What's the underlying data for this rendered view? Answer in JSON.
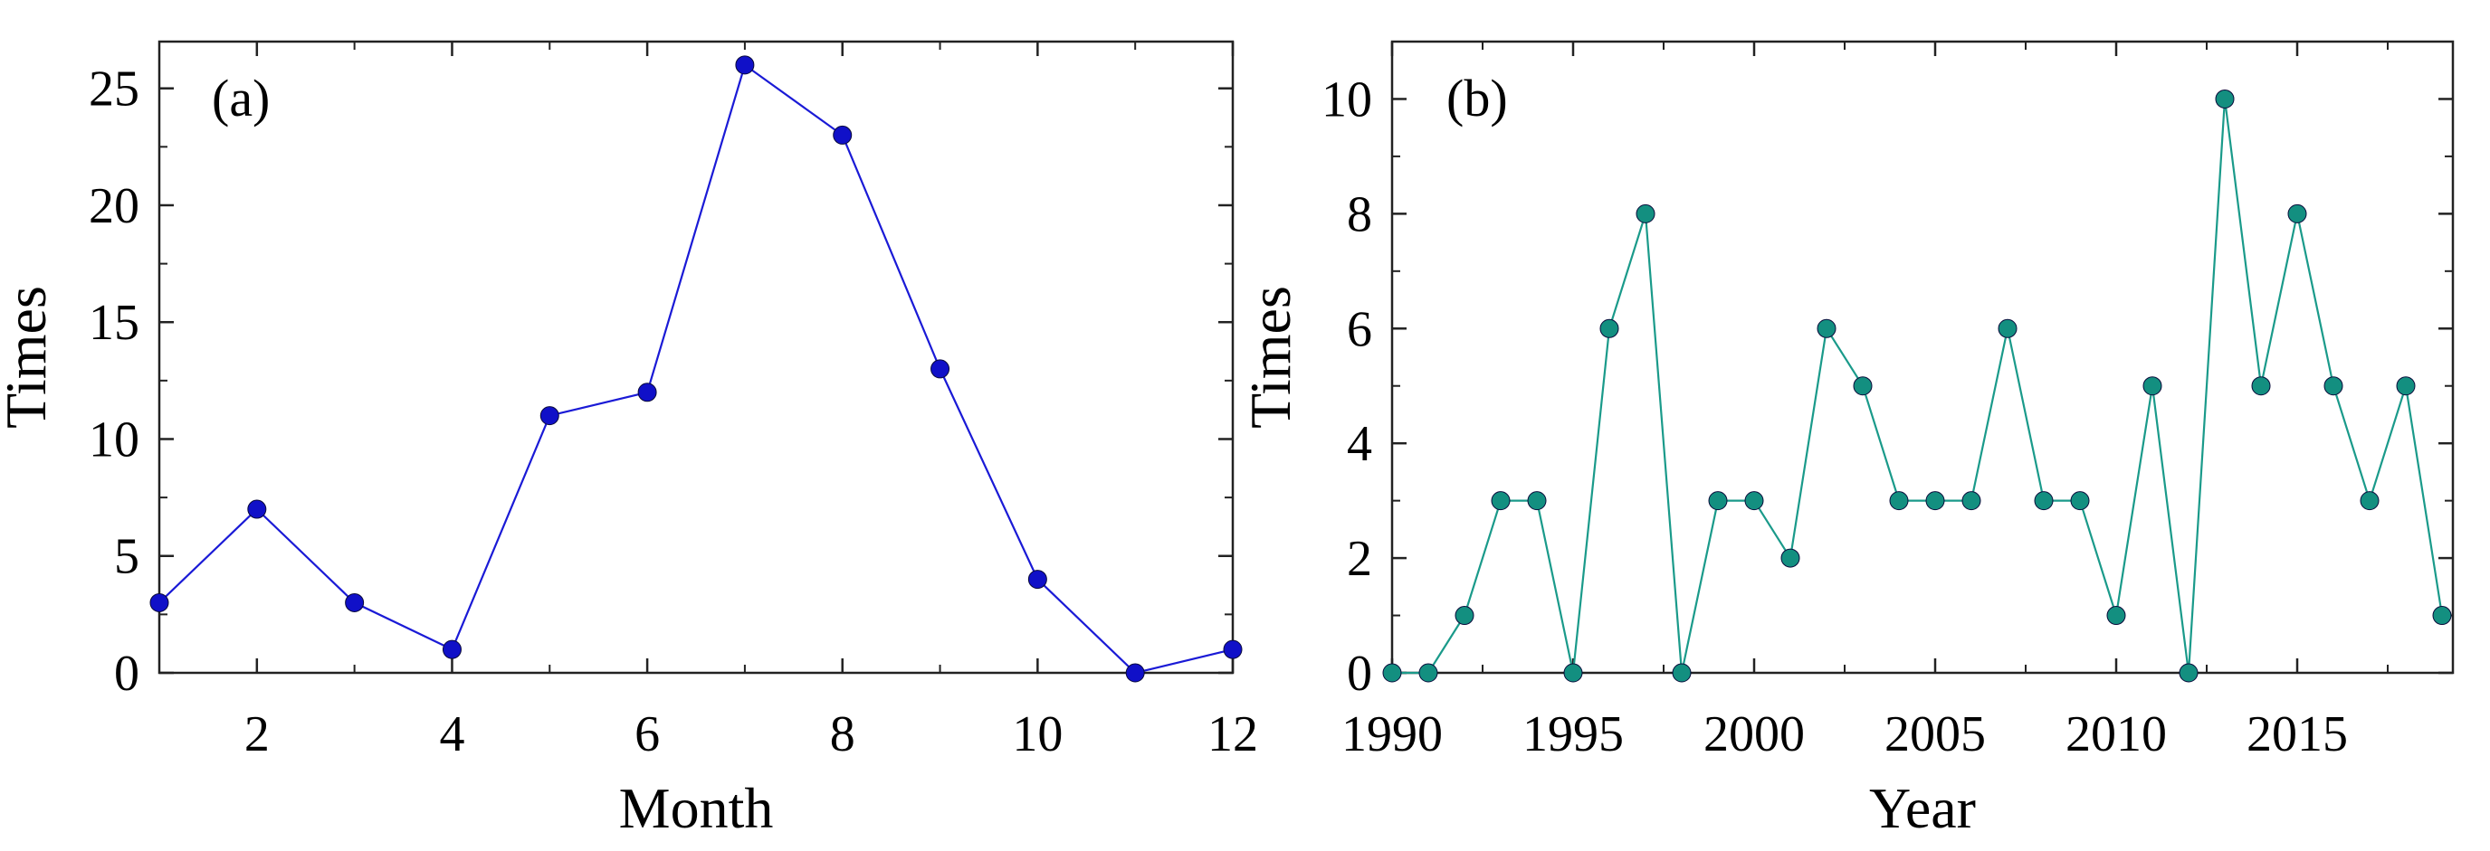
{
  "chart_data": [
    {
      "type": "line",
      "panel_label": "(a)",
      "xlabel": "Month",
      "ylabel": "Times",
      "xlim": [
        1,
        12
      ],
      "ylim": [
        0,
        27
      ],
      "xticks": [
        2,
        4,
        6,
        8,
        10,
        12
      ],
      "yticks": [
        0,
        5,
        10,
        15,
        20,
        25
      ],
      "grid": false,
      "color": "#1a1ad6",
      "marker_color": "#1010c8",
      "series": [
        {
          "name": "Times",
          "x": [
            1,
            2,
            3,
            4,
            5,
            6,
            7,
            8,
            9,
            10,
            11,
            12
          ],
          "values": [
            3,
            7,
            3,
            1,
            11,
            12,
            26,
            23,
            13,
            4,
            0,
            1
          ]
        }
      ]
    },
    {
      "type": "line",
      "panel_label": "(b)",
      "xlabel": "Year",
      "ylabel": "Times",
      "xlim": [
        1990,
        2019.3
      ],
      "ylim": [
        0,
        11
      ],
      "xticks": [
        1990,
        1995,
        2000,
        2005,
        2010,
        2015
      ],
      "yticks": [
        0,
        2,
        4,
        6,
        8,
        10
      ],
      "grid": false,
      "color": "#1a9a8a",
      "marker_color": "#138f80",
      "series": [
        {
          "name": "Times",
          "x": [
            1990,
            1991,
            1992,
            1993,
            1994,
            1995,
            1996,
            1997,
            1998,
            1999,
            2000,
            2001,
            2002,
            2003,
            2004,
            2005,
            2006,
            2007,
            2008,
            2009,
            2010,
            2011,
            2012,
            2013,
            2014,
            2015,
            2016,
            2017,
            2018,
            2019
          ],
          "values": [
            0,
            0,
            1,
            3,
            3,
            0,
            6,
            8,
            0,
            3,
            3,
            2,
            6,
            5,
            3,
            3,
            3,
            6,
            3,
            3,
            1,
            5,
            0,
            10,
            5,
            8,
            5,
            3,
            5,
            1
          ]
        }
      ]
    }
  ]
}
